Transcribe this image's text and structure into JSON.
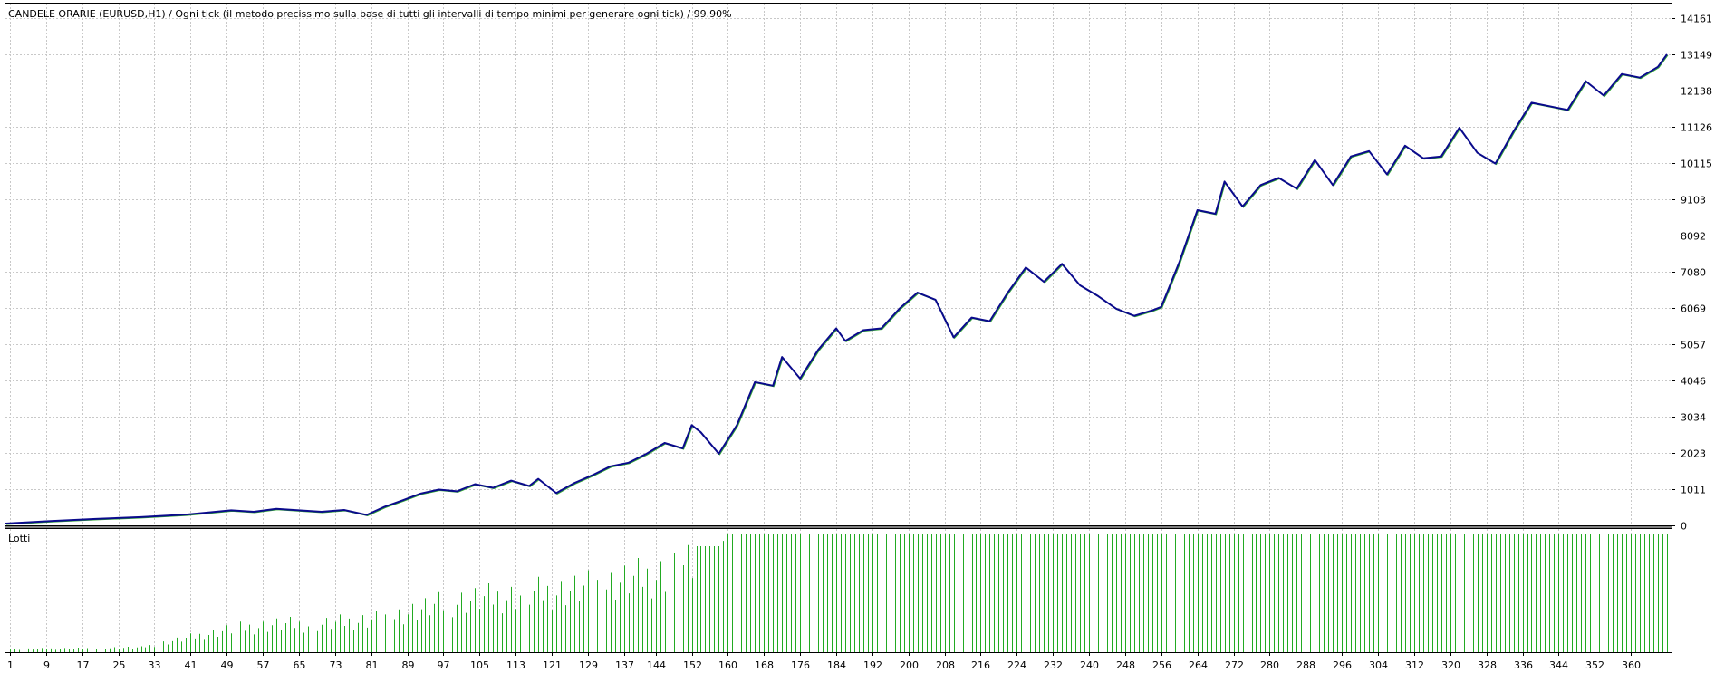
{
  "window": {
    "title": "CANDELE ORARIE (EURUSD,H1) / Ogni tick (il metodo precissimo sulla base di tutti gli intervalli di tempo minimi per generare ogni tick) / 99.90%"
  },
  "colors": {
    "balance_line": "#0a0a8c",
    "equity_line": "#2fa82f",
    "lots_bar": "#22aa22",
    "grid": "#c8c8c8",
    "frame": "#000000"
  },
  "chart_data": [
    {
      "type": "line",
      "title": "CANDELE ORARIE (EURUSD,H1) / Ogni tick (il metodo precissimo sulla base di tutti gli intervalli di tempo minimi per generare ogni tick) / 99.90%",
      "yticks": [
        0,
        1011,
        2023,
        3034,
        4046,
        5057,
        6069,
        7080,
        8092,
        9103,
        10115,
        11126,
        12138,
        13149,
        14161
      ],
      "ylim": [
        0,
        14161
      ],
      "xlim": [
        0,
        368
      ],
      "grid": true,
      "series": [
        {
          "x": [
            0,
            10,
            20,
            30,
            40,
            50,
            55,
            60,
            65,
            70,
            75,
            80,
            84,
            88,
            92,
            96,
            100,
            104,
            108,
            112,
            116,
            118,
            122,
            126,
            130,
            134,
            138,
            142,
            146,
            150,
            152,
            154,
            158,
            162,
            166,
            170,
            172,
            176,
            180,
            184,
            186,
            190,
            194,
            198,
            202,
            206,
            210,
            214,
            218,
            222,
            226,
            230,
            234,
            238,
            242,
            246,
            250,
            254,
            256,
            260,
            264,
            268,
            270,
            274,
            278,
            282,
            286,
            290,
            294,
            298,
            302,
            306,
            310,
            314,
            318,
            322,
            326,
            330,
            334,
            338,
            342,
            346,
            350,
            354,
            358,
            362,
            366,
            368
          ],
          "values": [
            50,
            120,
            180,
            230,
            300,
            420,
            380,
            460,
            420,
            380,
            430,
            290,
            520,
            700,
            890,
            1000,
            950,
            1150,
            1050,
            1250,
            1100,
            1300,
            900,
            1180,
            1400,
            1650,
            1750,
            2000,
            2300,
            2150,
            2800,
            2600,
            2000,
            2800,
            4000,
            3900,
            4700,
            4100,
            4900,
            5500,
            5150,
            5450,
            5500,
            6050,
            6500,
            6300,
            5250,
            5800,
            5700,
            6500,
            7200,
            6800,
            7300,
            6700,
            6400,
            6050,
            5850,
            6000,
            6100,
            7350,
            8800,
            8700,
            9600,
            8900,
            9500,
            9700,
            9400,
            10200,
            9500,
            10300,
            10450,
            9800,
            10600,
            10250,
            10300,
            11100,
            10400,
            10100,
            11000,
            11800,
            11700,
            11600,
            12400,
            12000,
            12600,
            12500,
            12800,
            13149
          ]
        }
      ]
    },
    {
      "type": "bar",
      "title": "Lotti",
      "xticks": [
        1,
        9,
        17,
        25,
        33,
        41,
        49,
        57,
        65,
        73,
        81,
        89,
        97,
        105,
        113,
        121,
        129,
        137,
        144,
        152,
        160,
        168,
        176,
        184,
        192,
        200,
        208,
        216,
        224,
        232,
        240,
        248,
        256,
        264,
        272,
        280,
        288,
        296,
        304,
        312,
        320,
        328,
        336,
        344,
        352,
        360
      ],
      "xlim": [
        0,
        368
      ],
      "ylim": [
        0,
        1
      ],
      "grid": true,
      "series": [
        {
          "x": [
            0,
            30,
            40,
            50,
            60,
            70,
            80,
            90,
            100,
            110,
            120,
            130,
            140,
            150,
            160,
            368
          ],
          "values": [
            0.03,
            0.05,
            0.15,
            0.25,
            0.3,
            0.3,
            0.35,
            0.45,
            0.55,
            0.6,
            0.65,
            0.7,
            0.8,
            0.9,
            1.0,
            1.0
          ]
        }
      ]
    }
  ]
}
